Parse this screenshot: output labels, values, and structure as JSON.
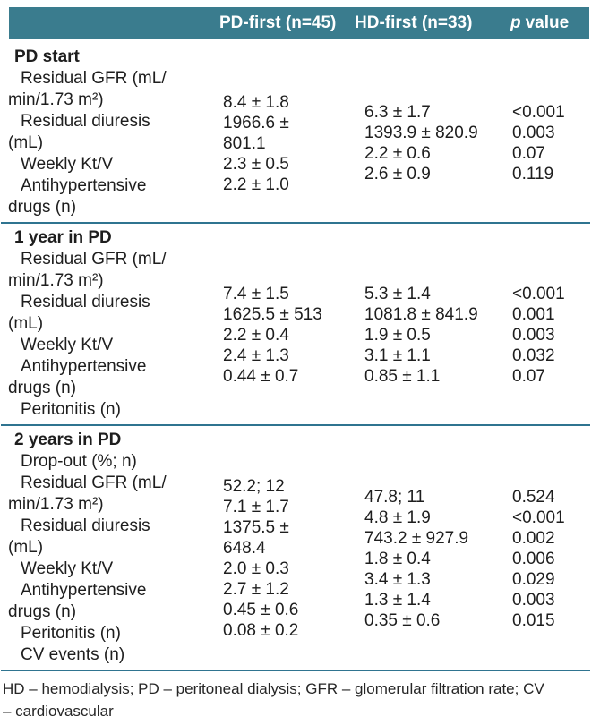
{
  "title_row": {
    "pd": "PD-first (n=45)",
    "hd": "HD-first (n=33)",
    "p_italic": "p",
    "p_rest": "value"
  },
  "sections": [
    {
      "title": "PD start",
      "rows": [
        {
          "label": "Residual GFR (mL/\nmin/1.73 m²)",
          "pd": "8.4 ± 1.8",
          "hd": "6.3 ± 1.7",
          "p": "<0.001"
        },
        {
          "label": "Residual diuresis\n(mL)",
          "pd": "1966.6 ±\n801.1",
          "hd": "1393.9 ± 820.9",
          "p": "0.003"
        },
        {
          "label": "Weekly Kt/V",
          "pd": "2.3 ± 0.5",
          "hd": "2.2 ± 0.6",
          "p": "0.07"
        },
        {
          "label": "Antihypertensive\ndrugs (n)",
          "pd": "2.2 ± 1.0",
          "hd": "2.6 ± 0.9",
          "p": "0.119"
        }
      ]
    },
    {
      "title": "1 year in PD",
      "rows": [
        {
          "label": "Residual GFR (mL/\nmin/1.73 m²)",
          "pd": "7.4 ± 1.5",
          "hd": "5.3 ± 1.4",
          "p": "<0.001"
        },
        {
          "label": "Residual diuresis\n(mL)",
          "pd": "1625.5 ± 513",
          "hd": "1081.8 ± 841.9",
          "p": "0.001"
        },
        {
          "label": "Weekly Kt/V",
          "pd": "2.2 ± 0.4",
          "hd": "1.9 ± 0.5",
          "p": "0.003"
        },
        {
          "label": "Antihypertensive\ndrugs (n)",
          "pd": "2.4 ± 1.3",
          "hd": "3.1 ± 1.1",
          "p": "0.032"
        },
        {
          "label": "Peritonitis (n)",
          "pd": "0.44 ± 0.7",
          "hd": "0.85 ± 1.1",
          "p": "0.07"
        }
      ]
    },
    {
      "title": "2 years in PD",
      "rows": [
        {
          "label": "Drop-out (%; n)",
          "pd": "52.2; 12",
          "hd": "47.8; 11",
          "p": "0.524"
        },
        {
          "label": "Residual GFR (mL/\nmin/1.73 m²)",
          "pd": "7.1 ± 1.7",
          "hd": "4.8 ± 1.9",
          "p": "<0.001"
        },
        {
          "label": "Residual diuresis\n(mL)",
          "pd": "1375.5 ±\n648.4",
          "hd": "743.2 ± 927.9",
          "p": "0.002"
        },
        {
          "label": "Weekly Kt/V",
          "pd": "2.0 ± 0.3",
          "hd": "1.8 ± 0.4",
          "p": "0.006"
        },
        {
          "label": "Antihypertensive\ndrugs (n)",
          "pd": "2.7 ± 1.2",
          "hd": "3.4 ± 1.3",
          "p": "0.029"
        },
        {
          "label": "Peritonitis (n)",
          "pd": "0.45 ± 0.6",
          "hd": "1.3 ± 1.4",
          "p": "0.003"
        },
        {
          "label": "CV events (n)",
          "pd": "0.08 ± 0.2",
          "hd": "0.35 ± 0.6",
          "p": "0.015"
        }
      ]
    }
  ],
  "footnote": "HD – hemodialysis; PD – peritoneal dialysis; GFR – glomerular filtration rate; CV\n– cardiovascular",
  "colors": {
    "header_bg": "#3a7c8e",
    "rule": "#2f7490",
    "text": "#1e1e1e"
  }
}
